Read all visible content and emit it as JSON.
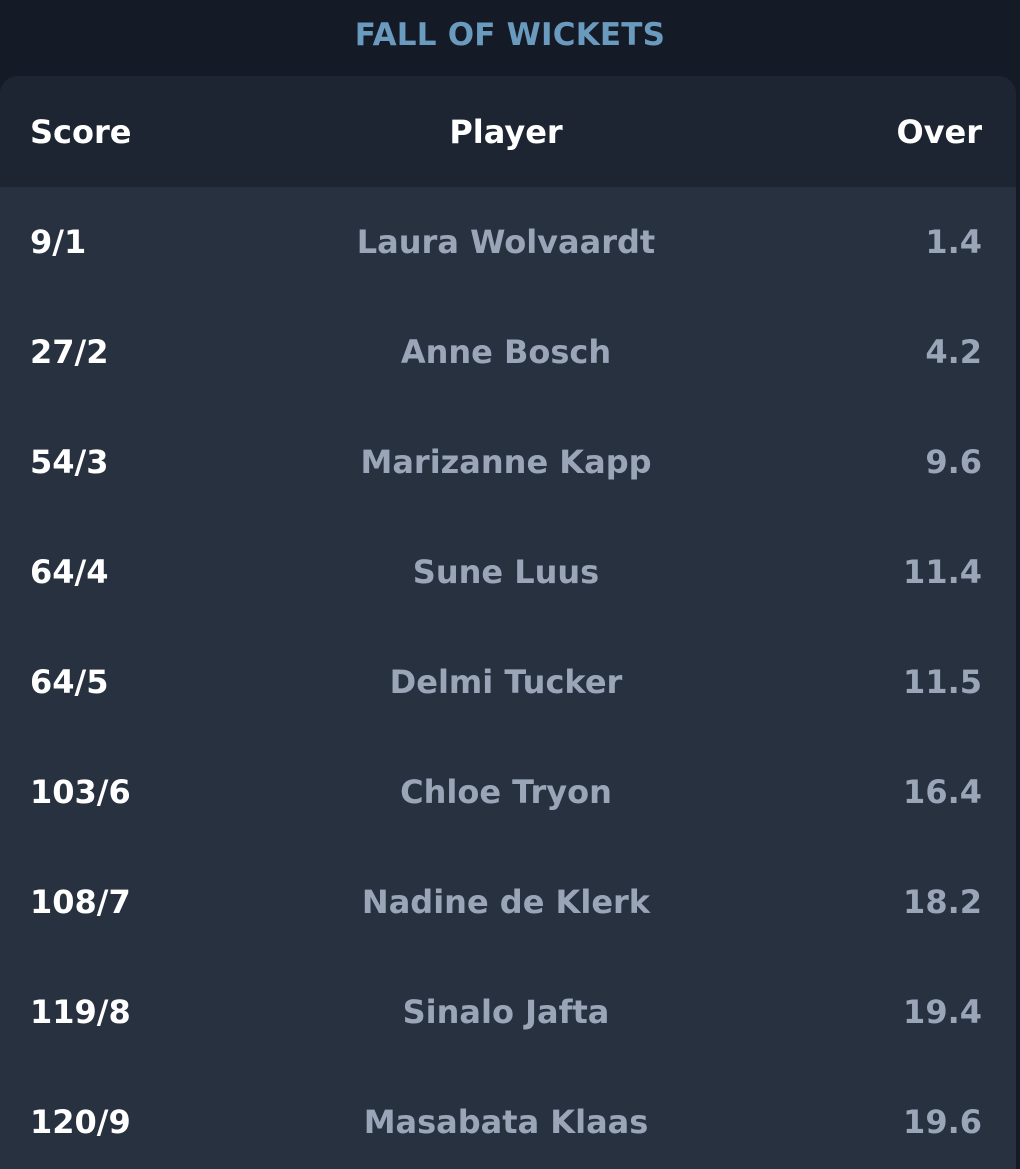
{
  "section": {
    "title": "FALL OF WICKETS"
  },
  "table": {
    "headers": {
      "score": "Score",
      "player": "Player",
      "over": "Over"
    },
    "rows": [
      {
        "score": "9/1",
        "player": "Laura Wolvaardt",
        "over": "1.4"
      },
      {
        "score": "27/2",
        "player": "Anne Bosch",
        "over": "4.2"
      },
      {
        "score": "54/3",
        "player": "Marizanne Kapp",
        "over": "9.6"
      },
      {
        "score": "64/4",
        "player": "Sune Luus",
        "over": "11.4"
      },
      {
        "score": "64/5",
        "player": "Delmi Tucker",
        "over": "11.5"
      },
      {
        "score": "103/6",
        "player": "Chloe Tryon",
        "over": "16.4"
      },
      {
        "score": "108/7",
        "player": "Nadine de Klerk",
        "over": "18.2"
      },
      {
        "score": "119/8",
        "player": "Sinalo Jafta",
        "over": "19.4"
      },
      {
        "score": "120/9",
        "player": "Masabata Klaas",
        "over": "19.6"
      }
    ]
  },
  "colors": {
    "background": "#141b27",
    "card": "#283140",
    "header_bg": "#1d2532",
    "title_accent": "#6b9abf",
    "muted_text": "#9aa6b8",
    "primary_text": "#ffffff"
  }
}
